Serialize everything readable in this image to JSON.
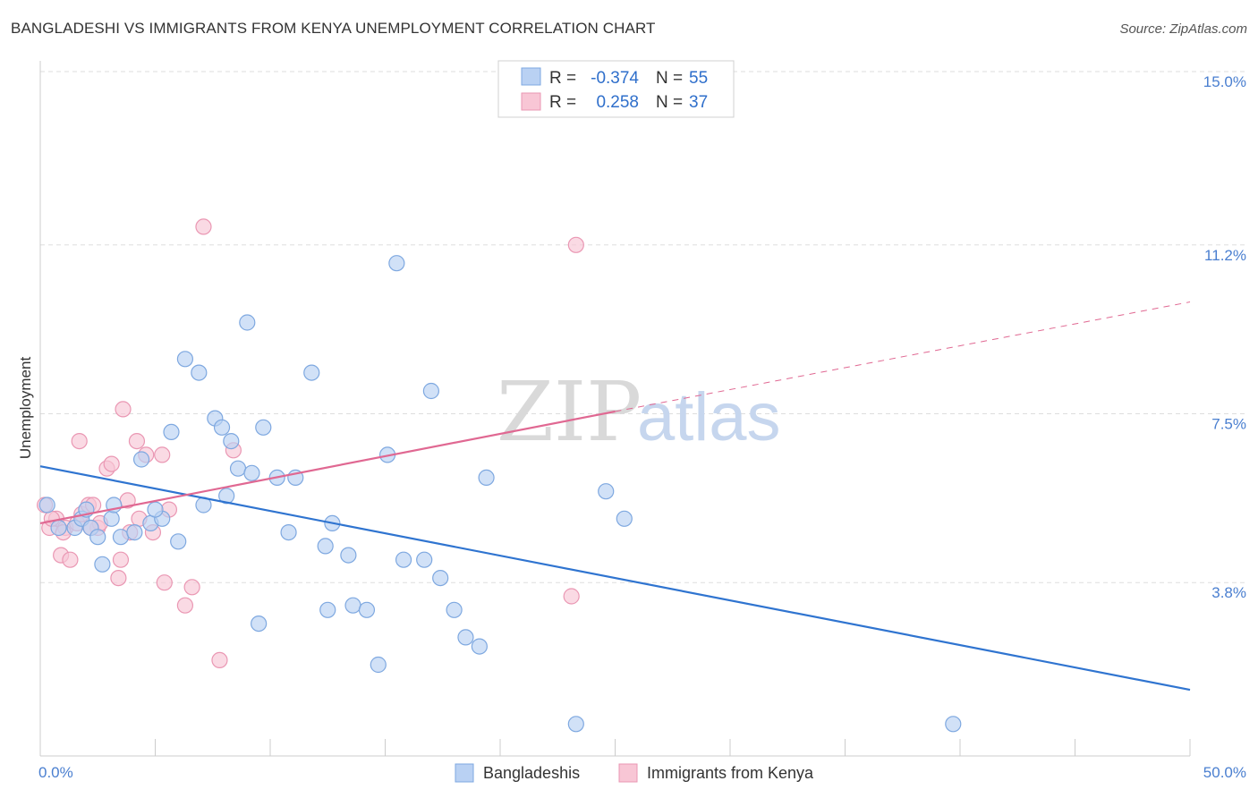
{
  "header": {
    "title": "BANGLADESHI VS IMMIGRANTS FROM KENYA UNEMPLOYMENT CORRELATION CHART",
    "source": "Source: ZipAtlas.com"
  },
  "watermark": {
    "zip": "ZIP",
    "atlas": "atlas"
  },
  "colors": {
    "blue_fill": "#b9d1f3",
    "blue_stroke": "#7ea8e0",
    "blue_line": "#2f74d0",
    "pink_fill": "#f8c6d5",
    "pink_stroke": "#ea97b3",
    "pink_line": "#e06892",
    "tick_label": "#4a7fd0",
    "grid": "#dddddd"
  },
  "legend": {
    "rows": [
      {
        "r_label": "R =",
        "r_value": "-0.374",
        "n_label": "N =",
        "n_value": "55"
      },
      {
        "r_label": "R =",
        "r_value": "0.258",
        "n_label": "N =",
        "n_value": "37"
      }
    ]
  },
  "chart_data": {
    "type": "scatter",
    "title": "BANGLADESHI VS IMMIGRANTS FROM KENYA UNEMPLOYMENT CORRELATION CHART",
    "xlabel": "",
    "ylabel": "Unemployment",
    "xlim": [
      0,
      50
    ],
    "ylim": [
      0,
      15
    ],
    "x_tick_labels": [
      "0.0%",
      "50.0%"
    ],
    "y_ticks": [
      3.8,
      7.5,
      11.2,
      15.0
    ],
    "y_tick_labels": [
      "3.8%",
      "7.5%",
      "11.2%",
      "15.0%"
    ],
    "grid": true,
    "legend_position": "top-center",
    "series": [
      {
        "name": "Bangladeshis",
        "color": "#b9d1f3",
        "stroke": "#7ea8e0",
        "points": [
          [
            0.3,
            5.5
          ],
          [
            0.8,
            5.0
          ],
          [
            1.5,
            5.0
          ],
          [
            1.8,
            5.2
          ],
          [
            2.2,
            5.0
          ],
          [
            2.5,
            4.8
          ],
          [
            2.7,
            4.2
          ],
          [
            2.0,
            5.4
          ],
          [
            3.1,
            5.2
          ],
          [
            3.5,
            4.8
          ],
          [
            3.2,
            5.5
          ],
          [
            4.1,
            4.9
          ],
          [
            4.4,
            6.5
          ],
          [
            4.8,
            5.1
          ],
          [
            5.3,
            5.2
          ],
          [
            5.0,
            5.4
          ],
          [
            5.7,
            7.1
          ],
          [
            6.3,
            8.7
          ],
          [
            6.0,
            4.7
          ],
          [
            6.9,
            8.4
          ],
          [
            7.6,
            7.4
          ],
          [
            7.1,
            5.5
          ],
          [
            7.9,
            7.2
          ],
          [
            8.3,
            6.9
          ],
          [
            8.6,
            6.3
          ],
          [
            8.1,
            5.7
          ],
          [
            9.2,
            6.2
          ],
          [
            9.0,
            9.5
          ],
          [
            9.7,
            7.2
          ],
          [
            10.3,
            6.1
          ],
          [
            10.8,
            4.9
          ],
          [
            11.1,
            6.1
          ],
          [
            11.8,
            8.4
          ],
          [
            12.4,
            4.6
          ],
          [
            12.7,
            5.1
          ],
          [
            12.5,
            3.2
          ],
          [
            13.4,
            4.4
          ],
          [
            13.6,
            3.3
          ],
          [
            14.2,
            3.2
          ],
          [
            14.7,
            2.0
          ],
          [
            15.1,
            6.6
          ],
          [
            15.8,
            4.3
          ],
          [
            16.7,
            4.3
          ],
          [
            15.5,
            10.8
          ],
          [
            17.4,
            3.9
          ],
          [
            18.0,
            3.2
          ],
          [
            17.0,
            8.0
          ],
          [
            19.1,
            2.4
          ],
          [
            18.5,
            2.6
          ],
          [
            19.4,
            6.1
          ],
          [
            24.6,
            5.8
          ],
          [
            25.4,
            5.2
          ],
          [
            23.3,
            0.7
          ],
          [
            39.7,
            0.7
          ],
          [
            9.5,
            2.9
          ]
        ]
      },
      {
        "name": "Immigrants from Kenya",
        "color": "#f8c6d5",
        "stroke": "#ea97b3",
        "points": [
          [
            0.2,
            5.5
          ],
          [
            0.4,
            5.0
          ],
          [
            0.7,
            5.2
          ],
          [
            0.9,
            4.4
          ],
          [
            1.1,
            5.0
          ],
          [
            1.3,
            4.3
          ],
          [
            1.6,
            5.1
          ],
          [
            1.7,
            6.9
          ],
          [
            1.8,
            5.3
          ],
          [
            2.1,
            5.5
          ],
          [
            2.3,
            5.5
          ],
          [
            2.5,
            5.0
          ],
          [
            2.6,
            5.1
          ],
          [
            2.9,
            6.3
          ],
          [
            3.1,
            6.4
          ],
          [
            3.4,
            3.9
          ],
          [
            3.5,
            4.3
          ],
          [
            3.6,
            7.6
          ],
          [
            3.8,
            5.6
          ],
          [
            3.9,
            4.9
          ],
          [
            4.2,
            6.9
          ],
          [
            4.3,
            5.2
          ],
          [
            4.6,
            6.6
          ],
          [
            4.9,
            4.9
          ],
          [
            5.3,
            6.6
          ],
          [
            5.4,
            3.8
          ],
          [
            5.6,
            5.4
          ],
          [
            6.3,
            3.3
          ],
          [
            6.6,
            3.7
          ],
          [
            7.1,
            11.6
          ],
          [
            7.8,
            2.1
          ],
          [
            8.4,
            6.7
          ],
          [
            23.3,
            11.2
          ],
          [
            23.1,
            3.5
          ],
          [
            0.5,
            5.2
          ],
          [
            1.0,
            4.9
          ],
          [
            2.2,
            5.0
          ]
        ]
      }
    ],
    "trend_lines": [
      {
        "series": "Bangladeshis",
        "from": [
          0,
          6.35
        ],
        "to": [
          50,
          1.45
        ],
        "style": "solid"
      },
      {
        "series": "Immigrants from Kenya",
        "from": [
          0,
          5.1
        ],
        "to": [
          25,
          7.55
        ],
        "style": "solid"
      },
      {
        "series": "Immigrants from Kenya",
        "from": [
          25,
          7.55
        ],
        "to": [
          50,
          9.95
        ],
        "style": "dashed"
      }
    ]
  }
}
